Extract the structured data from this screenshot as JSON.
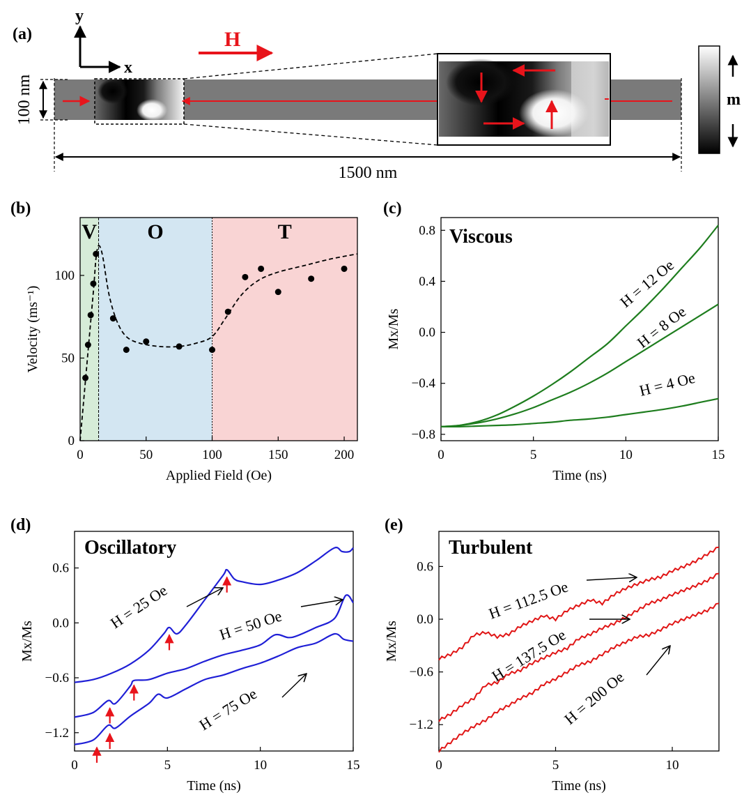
{
  "panel_a": {
    "label": "(a)",
    "axis_y": "y",
    "axis_x": "x",
    "field_label": "H",
    "width_label": "100 nm",
    "length_label": "1500 nm",
    "colorbar_label": "m",
    "colors": {
      "arrow": "#e8141b",
      "strip": "#7a7a7a"
    }
  },
  "chart_data": [
    {
      "id": "b",
      "type": "scatter",
      "panel_label": "(b)",
      "xlabel": "Applied Field (Oe)",
      "ylabel": "Velocity (ms⁻¹)",
      "xlim": [
        0,
        210
      ],
      "ylim": [
        0,
        135
      ],
      "xticks": [
        0,
        50,
        100,
        150,
        200
      ],
      "yticks": [
        0,
        50,
        100
      ],
      "regions": [
        {
          "label": "V",
          "from": 0,
          "to": 14,
          "color": "#d6ecd8"
        },
        {
          "label": "O",
          "from": 14,
          "to": 100,
          "color": "#d3e6f2"
        },
        {
          "label": "T",
          "from": 100,
          "to": 210,
          "color": "#f9d4d4"
        }
      ],
      "points": [
        [
          4,
          38
        ],
        [
          6,
          58
        ],
        [
          8,
          76
        ],
        [
          10,
          95
        ],
        [
          12,
          113
        ],
        [
          25,
          74
        ],
        [
          35,
          55
        ],
        [
          50,
          60
        ],
        [
          75,
          57
        ],
        [
          100,
          55
        ],
        [
          112,
          78
        ],
        [
          125,
          99
        ],
        [
          137,
          104
        ],
        [
          150,
          90
        ],
        [
          175,
          98
        ],
        [
          200,
          104
        ]
      ],
      "fit": [
        [
          0,
          0
        ],
        [
          5,
          45
        ],
        [
          10,
          90
        ],
        [
          12,
          110
        ],
        [
          14,
          118
        ],
        [
          17,
          112
        ],
        [
          22,
          88
        ],
        [
          28,
          72
        ],
        [
          35,
          63
        ],
        [
          45,
          59
        ],
        [
          60,
          57
        ],
        [
          75,
          57
        ],
        [
          88,
          59
        ],
        [
          100,
          63
        ],
        [
          110,
          74
        ],
        [
          122,
          88
        ],
        [
          135,
          97
        ],
        [
          150,
          102
        ],
        [
          170,
          106
        ],
        [
          190,
          110
        ],
        [
          210,
          113
        ]
      ]
    },
    {
      "id": "c",
      "type": "line",
      "panel_label": "(c)",
      "title": "Viscous",
      "xlabel": "Time (ns)",
      "ylabel": "Mx/Ms",
      "xlim": [
        0,
        15
      ],
      "ylim": [
        -0.85,
        0.9
      ],
      "xticks": [
        0,
        5,
        10,
        15
      ],
      "yticks": [
        -0.8,
        -0.4,
        0.0,
        0.4,
        0.8
      ],
      "color": "#1e7d1e",
      "series": [
        {
          "name": "H = 12 Oe",
          "x": [
            0,
            1,
            2,
            3,
            4,
            5,
            6,
            7,
            8,
            9,
            10,
            11,
            12,
            13,
            14,
            15
          ],
          "values": [
            -0.74,
            -0.73,
            -0.7,
            -0.65,
            -0.58,
            -0.5,
            -0.41,
            -0.31,
            -0.2,
            -0.09,
            0.05,
            0.19,
            0.34,
            0.5,
            0.66,
            0.84
          ]
        },
        {
          "name": "H = 8 Oe",
          "x": [
            0,
            1,
            2,
            3,
            4,
            5,
            6,
            7,
            8,
            9,
            10,
            11,
            12,
            13,
            14,
            15
          ],
          "values": [
            -0.74,
            -0.73,
            -0.71,
            -0.68,
            -0.64,
            -0.59,
            -0.53,
            -0.47,
            -0.4,
            -0.32,
            -0.23,
            -0.14,
            -0.05,
            0.04,
            0.13,
            0.22
          ]
        },
        {
          "name": "H = 4 Oe",
          "x": [
            0,
            1,
            2,
            3,
            4,
            5,
            6,
            7,
            8,
            9,
            10,
            11,
            12,
            13,
            14,
            15
          ],
          "values": [
            -0.74,
            -0.74,
            -0.735,
            -0.73,
            -0.725,
            -0.715,
            -0.705,
            -0.69,
            -0.68,
            -0.665,
            -0.645,
            -0.625,
            -0.605,
            -0.58,
            -0.55,
            -0.52
          ]
        }
      ]
    },
    {
      "id": "d",
      "type": "line",
      "panel_label": "(d)",
      "title": "Oscillatory",
      "xlabel": "Time (ns)",
      "ylabel": "Mx/Ms",
      "xlim": [
        0,
        15
      ],
      "ylim": [
        -1.4,
        1.0
      ],
      "xticks": [
        0,
        5,
        10,
        15
      ],
      "yticks": [
        -1.2,
        -0.6,
        0.0,
        0.6
      ],
      "color": "#1f1fd6",
      "series": [
        {
          "name": "H = 25 Oe",
          "x": [
            0,
            1,
            2,
            3,
            4,
            4.8,
            5.1,
            5.5,
            6,
            7,
            8,
            8.2,
            8.6,
            9,
            10,
            11,
            12,
            13,
            14,
            14.4,
            14.8,
            15
          ],
          "values": [
            -0.65,
            -0.62,
            -0.55,
            -0.45,
            -0.3,
            -0.12,
            -0.05,
            -0.12,
            -0.02,
            0.25,
            0.52,
            0.58,
            0.48,
            0.45,
            0.42,
            0.47,
            0.55,
            0.68,
            0.82,
            0.78,
            0.78,
            0.82
          ]
        },
        {
          "name": "H = 50 Oe",
          "x": [
            0,
            1,
            1.8,
            2.2,
            3,
            3.2,
            4,
            5,
            6,
            7,
            8,
            9,
            10,
            10.8,
            11.5,
            12,
            13,
            14,
            14.6,
            15
          ],
          "values": [
            -1.03,
            -0.98,
            -0.85,
            -0.88,
            -0.69,
            -0.63,
            -0.62,
            -0.55,
            -0.5,
            -0.42,
            -0.35,
            -0.3,
            -0.24,
            -0.13,
            -0.16,
            -0.14,
            -0.05,
            0.05,
            0.3,
            0.22
          ]
        },
        {
          "name": "H = 75 Oe",
          "x": [
            0,
            1,
            1.8,
            2.2,
            3,
            4,
            4.5,
            5,
            6,
            7,
            8,
            9,
            10,
            11,
            12,
            13,
            14,
            14.5,
            15
          ],
          "values": [
            -1.33,
            -1.28,
            -1.12,
            -1.15,
            -1.02,
            -0.88,
            -0.78,
            -0.82,
            -0.72,
            -0.62,
            -0.57,
            -0.5,
            -0.44,
            -0.36,
            -0.27,
            -0.22,
            -0.12,
            -0.18,
            -0.2
          ]
        }
      ],
      "markers": [
        [
          1.2,
          -1.3
        ],
        [
          1.9,
          -1.15
        ],
        [
          1.9,
          -0.87
        ],
        [
          3.2,
          -0.62
        ],
        [
          5.1,
          -0.07
        ],
        [
          8.2,
          0.56
        ]
      ]
    },
    {
      "id": "e",
      "type": "line",
      "panel_label": "(e)",
      "title": "Turbulent",
      "xlabel": "Time (ns)",
      "ylabel": "Mx/Ms",
      "xlim": [
        0,
        12
      ],
      "ylim": [
        -1.5,
        1.0
      ],
      "xticks": [
        0,
        5,
        10
      ],
      "yticks": [
        -1.2,
        -0.6,
        0.0,
        0.6
      ],
      "color": "#e01414",
      "series": [
        {
          "name": "H = 112.5 Oe",
          "x": [
            0,
            0.5,
            1,
            1.5,
            2,
            2.5,
            3,
            3.5,
            4,
            4.5,
            5,
            5.5,
            6,
            6.5,
            7,
            7.5,
            8,
            8.5,
            9,
            9.5,
            10,
            10.5,
            11,
            11.5,
            12
          ],
          "values": [
            -0.45,
            -0.4,
            -0.32,
            -0.18,
            -0.15,
            -0.2,
            -0.17,
            -0.08,
            -0.02,
            0.04,
            0.0,
            0.1,
            0.16,
            0.22,
            0.18,
            0.28,
            0.35,
            0.4,
            0.45,
            0.48,
            0.55,
            0.6,
            0.66,
            0.74,
            0.82
          ]
        },
        {
          "name": "H = 137.5 Oe",
          "x": [
            0,
            0.5,
            1,
            1.5,
            2,
            2.5,
            3,
            3.5,
            4,
            4.5,
            5,
            5.5,
            6,
            6.5,
            7,
            7.5,
            8,
            8.5,
            9,
            9.5,
            10,
            10.5,
            11,
            11.5,
            12
          ],
          "values": [
            -1.15,
            -1.08,
            -0.98,
            -0.9,
            -0.75,
            -0.72,
            -0.62,
            -0.58,
            -0.5,
            -0.44,
            -0.38,
            -0.33,
            -0.22,
            -0.17,
            -0.1,
            -0.05,
            0.02,
            0.1,
            0.18,
            0.22,
            0.28,
            0.33,
            0.38,
            0.44,
            0.52
          ]
        },
        {
          "name": "H = 200 Oe",
          "x": [
            0,
            0.5,
            1,
            1.5,
            2,
            2.5,
            3,
            3.5,
            4,
            4.5,
            5,
            5.5,
            6,
            6.5,
            7,
            7.5,
            8,
            8.5,
            9,
            9.5,
            10,
            10.5,
            11,
            11.5,
            12
          ],
          "values": [
            -1.5,
            -1.4,
            -1.3,
            -1.22,
            -1.15,
            -1.05,
            -0.98,
            -0.9,
            -0.84,
            -0.74,
            -0.68,
            -0.6,
            -0.52,
            -0.48,
            -0.4,
            -0.32,
            -0.26,
            -0.2,
            -0.18,
            -0.12,
            -0.05,
            0.0,
            0.05,
            0.1,
            0.18
          ]
        }
      ]
    }
  ]
}
